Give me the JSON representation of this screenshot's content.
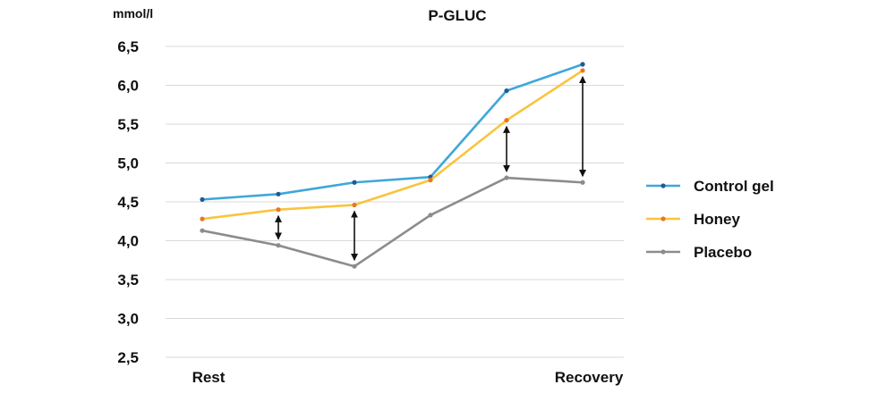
{
  "chart_data": {
    "type": "line",
    "title": "P-GLUC",
    "ylabel": "mmol/l",
    "ylim": [
      2.5,
      6.5
    ],
    "yticks": [
      2.5,
      3.0,
      3.5,
      4.0,
      4.5,
      5.0,
      5.5,
      6.0,
      6.5
    ],
    "ytick_labels": [
      "2,5",
      "3,0",
      "3,5",
      "4,0",
      "4,5",
      "5,0",
      "5,5",
      "6,0",
      "6,5"
    ],
    "x_labels": [
      "Rest",
      "Recovery"
    ],
    "series": [
      {
        "name": "Control gel",
        "color": "#3fa7d9",
        "values": [
          4.53,
          4.6,
          4.75,
          4.82,
          5.93,
          6.27
        ]
      },
      {
        "name": "Honey",
        "color": "#f9c43e",
        "values": [
          4.28,
          4.4,
          4.46,
          4.78,
          5.55,
          6.19
        ]
      },
      {
        "name": "Placebo",
        "color": "#8c8c8c",
        "values": [
          4.13,
          3.94,
          3.67,
          4.33,
          4.81,
          4.75
        ]
      }
    ],
    "marker_colors": {
      "Control gel": "#1e5a96",
      "Honey": "#e87722",
      "Placebo": "#8c8c8c"
    },
    "difference_arrows_at_points": [
      2,
      3,
      5,
      6
    ],
    "grid": true,
    "legend_position": "right"
  }
}
